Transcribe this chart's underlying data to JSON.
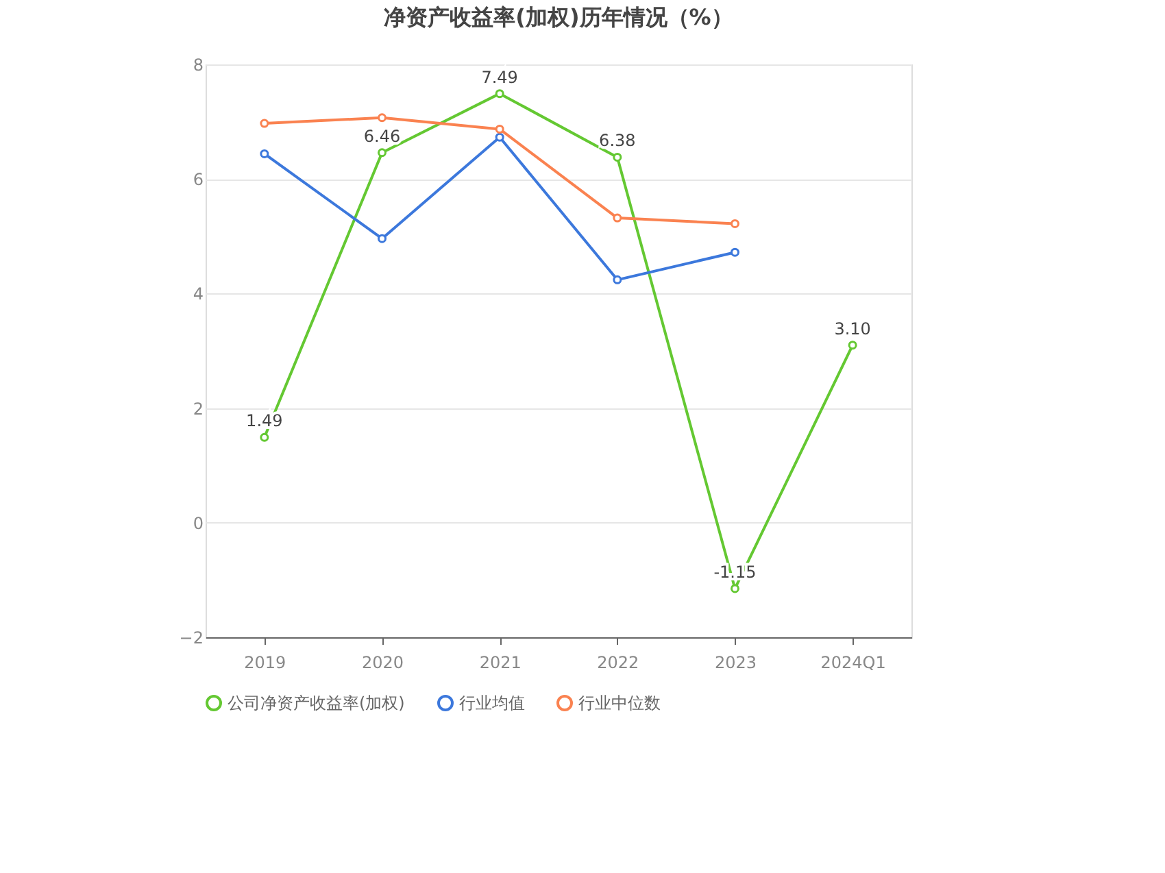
{
  "chart_data": {
    "type": "line",
    "title": "净资产收益率(加权)历年情况（%）",
    "categories": [
      "2019",
      "2020",
      "2021",
      "2022",
      "2023",
      "2024Q1"
    ],
    "series": [
      {
        "name": "公司净资产收益率(加权)",
        "color": "#64c832",
        "values": [
          1.49,
          6.46,
          7.49,
          6.38,
          -1.15,
          3.1
        ],
        "value_labels": [
          "1.49",
          "6.46",
          "7.49",
          "6.38",
          "-1.15",
          "3.10"
        ]
      },
      {
        "name": "行业均值",
        "color": "#3c78dc",
        "values": [
          6.44,
          4.96,
          6.73,
          4.24,
          4.72,
          null
        ]
      },
      {
        "name": "行业中位数",
        "color": "#fa8250",
        "values": [
          6.97,
          7.07,
          6.87,
          5.32,
          5.22,
          null
        ]
      }
    ],
    "ylim": [
      -2,
      8
    ],
    "yticks": [
      -2,
      0,
      2,
      4,
      6,
      8
    ],
    "grid": "y",
    "legend": "bottom",
    "marker": "circle",
    "line_style": "solid"
  }
}
